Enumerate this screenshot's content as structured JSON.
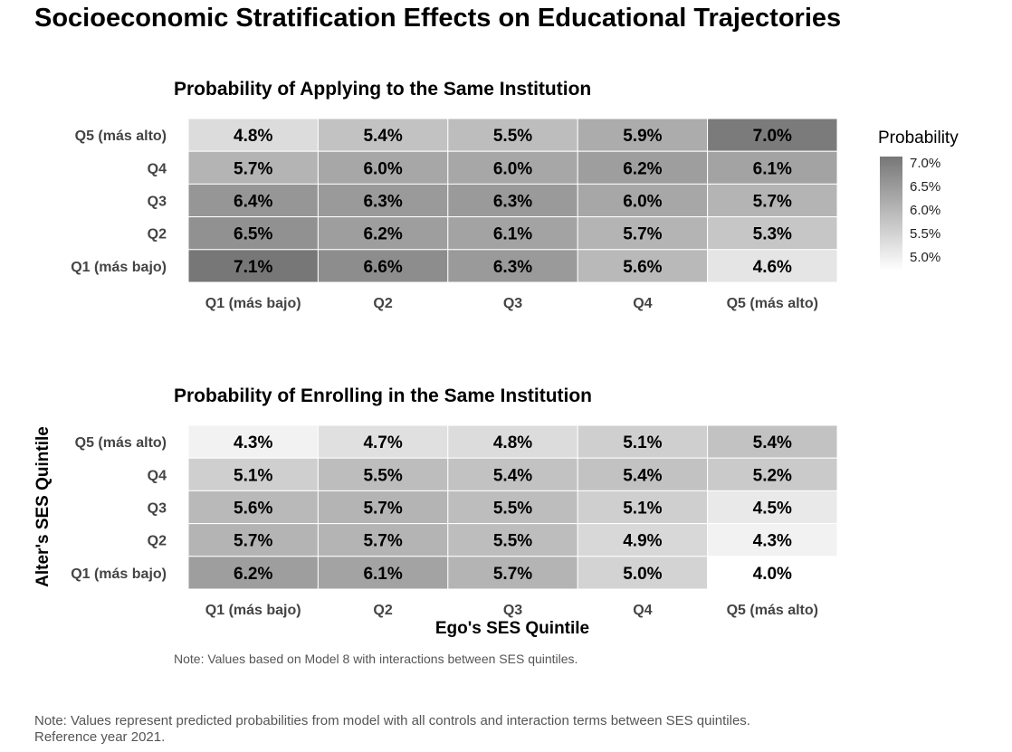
{
  "title": "Socioeconomic Stratification Effects on Educational Trajectories",
  "ylabel": "Alter's SES Quintile",
  "xlabel": "Ego's SES Quintile",
  "panel_note": "Note: Values based on Model 8 with interactions between SES quintiles.",
  "footnote": {
    "line1": "Note: Values represent predicted probabilities from model with all controls and interaction terms between SES quintiles.",
    "line2": "Reference year 2021."
  },
  "legend": {
    "title": "Probability",
    "ticks": [
      "7.0%",
      "6.5%",
      "6.0%",
      "5.5%",
      "5.0%"
    ],
    "scale": {
      "min": 4.0,
      "max": 7.1
    }
  },
  "colors": {
    "low": "#ffffff",
    "high": "#777777"
  },
  "chart_data": [
    {
      "type": "heatmap",
      "title": "Probability of Applying to the Same Institution",
      "x_categories": [
        "Q1 (más bajo)",
        "Q2",
        "Q3",
        "Q4",
        "Q5 (más alto)"
      ],
      "y_categories": [
        "Q5 (más alto)",
        "Q4",
        "Q3",
        "Q2",
        "Q1 (más bajo)"
      ],
      "values": [
        [
          4.8,
          5.4,
          5.5,
          5.9,
          7.0
        ],
        [
          5.7,
          6.0,
          6.0,
          6.2,
          6.1
        ],
        [
          6.4,
          6.3,
          6.3,
          6.0,
          5.7
        ],
        [
          6.5,
          6.2,
          6.1,
          5.7,
          5.3
        ],
        [
          7.1,
          6.6,
          6.3,
          5.6,
          4.6
        ]
      ],
      "value_labels": [
        [
          "4.8%",
          "5.4%",
          "5.5%",
          "5.9%",
          "7.0%"
        ],
        [
          "5.7%",
          "6.0%",
          "6.0%",
          "6.2%",
          "6.1%"
        ],
        [
          "6.4%",
          "6.3%",
          "6.3%",
          "6.0%",
          "5.7%"
        ],
        [
          "6.5%",
          "6.2%",
          "6.1%",
          "5.7%",
          "5.3%"
        ],
        [
          "7.1%",
          "6.6%",
          "6.3%",
          "5.6%",
          "4.6%"
        ]
      ]
    },
    {
      "type": "heatmap",
      "title": "Probability of Enrolling in the Same Institution",
      "x_categories": [
        "Q1 (más bajo)",
        "Q2",
        "Q3",
        "Q4",
        "Q5 (más alto)"
      ],
      "y_categories": [
        "Q5 (más alto)",
        "Q4",
        "Q3",
        "Q2",
        "Q1 (más bajo)"
      ],
      "values": [
        [
          4.3,
          4.7,
          4.8,
          5.1,
          5.4
        ],
        [
          5.1,
          5.5,
          5.4,
          5.4,
          5.2
        ],
        [
          5.6,
          5.7,
          5.5,
          5.1,
          4.5
        ],
        [
          5.7,
          5.7,
          5.5,
          4.9,
          4.3
        ],
        [
          6.2,
          6.1,
          5.7,
          5.0,
          4.0
        ]
      ],
      "value_labels": [
        [
          "4.3%",
          "4.7%",
          "4.8%",
          "5.1%",
          "5.4%"
        ],
        [
          "5.1%",
          "5.5%",
          "5.4%",
          "5.4%",
          "5.2%"
        ],
        [
          "5.6%",
          "5.7%",
          "5.5%",
          "5.1%",
          "4.5%"
        ],
        [
          "5.7%",
          "5.7%",
          "5.5%",
          "4.9%",
          "4.3%"
        ],
        [
          "6.2%",
          "6.1%",
          "5.7%",
          "5.0%",
          "4.0%"
        ]
      ]
    }
  ]
}
